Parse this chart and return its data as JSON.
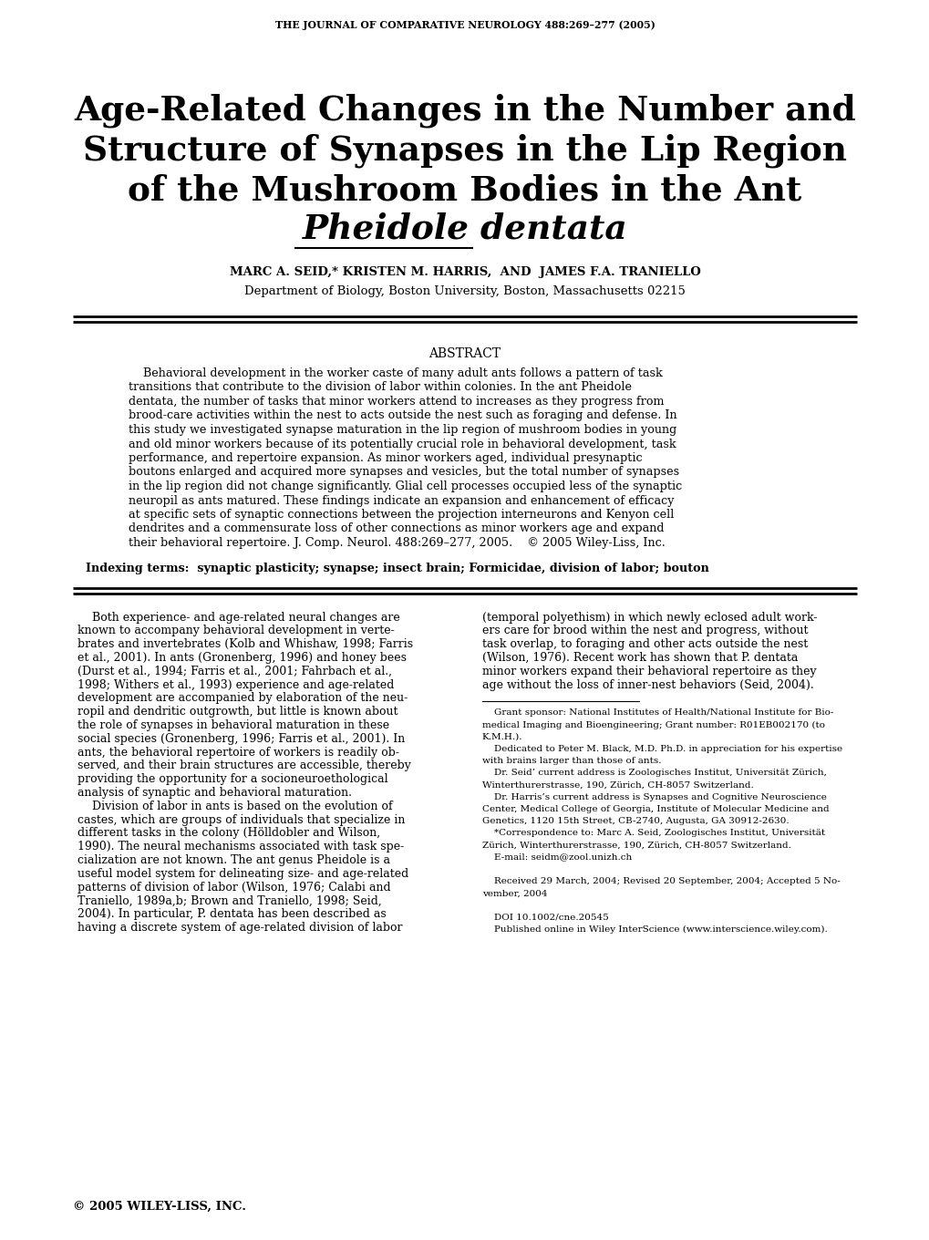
{
  "background_color": "#ffffff",
  "journal_header": "THE JOURNAL OF COMPARATIVE NEUROLOGY 488:269–277 (2005)",
  "title_line1": "Age-Related Changes in the Number and",
  "title_line2": "Structure of Synapses in the Lip Region",
  "title_line3": "of the Mushroom Bodies in the Ant",
  "title_line4_italic": "Pheidole dentata",
  "authors_line1": "MARC A. SEID,* KRISTEN M. HARRIS,  AND  JAMES F.A. TRANIELLO",
  "authors_line2": "Department of Biology, Boston University, Boston, Massachusetts 02215",
  "abstract_title": "ABSTRACT",
  "abstract_text": "    Behavioral development in the worker caste of many adult ants follows a pattern of task transitions that contribute to the division of labor within colonies. In the ant Pheidole dentata, the number of tasks that minor workers attend to increases as they progress from brood-care activities within the nest to acts outside the nest such as foraging and defense. In this study we investigated synapse maturation in the lip region of mushroom bodies in young and old minor workers because of its potentially crucial role in behavioral development, task performance, and repertoire expansion. As minor workers aged, individual presynaptic boutons enlarged and acquired more synapses and vesicles, but the total number of synapses in the lip region did not change significantly. Glial cell processes occupied less of the synaptic neuropil as ants matured. These findings indicate an expansion and enhancement of efficacy at specific sets of synaptic connections between the projection interneurons and Kenyon cell dendrites and a commensurate loss of other connections as minor workers age and expand their behavioral repertoire. J. Comp. Neurol. 488:269–277, 2005.    © 2005 Wiley-Liss, Inc.",
  "indexing_terms": "Indexing terms:  synaptic plasticity; synapse; insect brain; Formicidae, division of labor; bouton",
  "body_col1_lines": [
    "    Both experience- and age-related neural changes are",
    "known to accompany behavioral development in verte-",
    "brates and invertebrates (Kolb and Whishaw, 1998; Farris",
    "et al., 2001). In ants (Gronenberg, 1996) and honey bees",
    "(Durst et al., 1994; Farris et al., 2001; Fahrbach et al.,",
    "1998; Withers et al., 1993) experience and age-related",
    "development are accompanied by elaboration of the neu-",
    "ropil and dendritic outgrowth, but little is known about",
    "the role of synapses in behavioral maturation in these",
    "social species (Gronenberg, 1996; Farris et al., 2001). In",
    "ants, the behavioral repertoire of workers is readily ob-",
    "served, and their brain structures are accessible, thereby",
    "providing the opportunity for a socioneuroethological",
    "analysis of synaptic and behavioral maturation.",
    "    Division of labor in ants is based on the evolution of",
    "castes, which are groups of individuals that specialize in",
    "different tasks in the colony (Hölldobler and Wilson,",
    "1990). The neural mechanisms associated with task spe-",
    "cialization are not known. The ant genus Pheidole is a",
    "useful model system for delineating size- and age-related",
    "patterns of division of labor (Wilson, 1976; Calabi and",
    "Traniello, 1989a,b; Brown and Traniello, 1998; Seid,",
    "2004). In particular, P. dentata has been described as",
    "having a discrete system of age-related division of labor"
  ],
  "body_col2_lines": [
    "(temporal polyethism) in which newly eclosed adult work-",
    "ers care for brood within the nest and progress, without",
    "task overlap, to foraging and other acts outside the nest",
    "(Wilson, 1976). Recent work has shown that P. dentata",
    "minor workers expand their behavioral repertoire as they",
    "age without the loss of inner-nest behaviors (Seid, 2004)."
  ],
  "footnote_lines": [
    "    Grant sponsor: National Institutes of Health/National Institute for Bio-",
    "medical Imaging and Bioengineering; Grant number: R01EB002170 (to",
    "K.M.H.).",
    "    Dedicated to Peter M. Black, M.D. Ph.D. in appreciation for his expertise",
    "with brains larger than those of ants.",
    "    Dr. Seid’ current address is Zoologisches Institut, Universität Zürich,",
    "Winterthurerstrasse, 190, Zürich, CH-8057 Switzerland.",
    "    Dr. Harris’s current address is Synapses and Cognitive Neuroscience",
    "Center, Medical College of Georgia, Institute of Molecular Medicine and",
    "Genetics, 1120 15th Street, CB-2740, Augusta, GA 30912-2630.",
    "    *Correspondence to: Marc A. Seid, Zoologisches Institut, Universität",
    "Zürich, Winterthurerstrasse, 190, Zürich, CH-8057 Switzerland.",
    "    E-mail: seidm@zool.unizh.ch",
    "",
    "    Received 29 March, 2004; Revised 20 September, 2004; Accepted 5 No-",
    "vember, 2004",
    "",
    "    DOI 10.1002/cne.20545",
    "    Published online in Wiley InterScience (www.interscience.wiley.com)."
  ],
  "copyright": "© 2005 WILEY-LISS, INC.",
  "abstract_lines": [
    "    Behavioral development in the worker caste of many adult ants follows a pattern of task",
    "transitions that contribute to the division of labor within colonies. In the ant Pheidole",
    "dentata, the number of tasks that minor workers attend to increases as they progress from",
    "brood-care activities within the nest to acts outside the nest such as foraging and defense. In",
    "this study we investigated synapse maturation in the lip region of mushroom bodies in young",
    "and old minor workers because of its potentially crucial role in behavioral development, task",
    "performance, and repertoire expansion. As minor workers aged, individual presynaptic",
    "boutons enlarged and acquired more synapses and vesicles, but the total number of synapses",
    "in the lip region did not change significantly. Glial cell processes occupied less of the synaptic",
    "neuropil as ants matured. These findings indicate an expansion and enhancement of efficacy",
    "at specific sets of synaptic connections between the projection interneurons and Kenyon cell",
    "dendrites and a commensurate loss of other connections as minor workers age and expand",
    "their behavioral repertoire. J. Comp. Neurol. 488:269–277, 2005.    © 2005 Wiley-Liss, Inc."
  ]
}
